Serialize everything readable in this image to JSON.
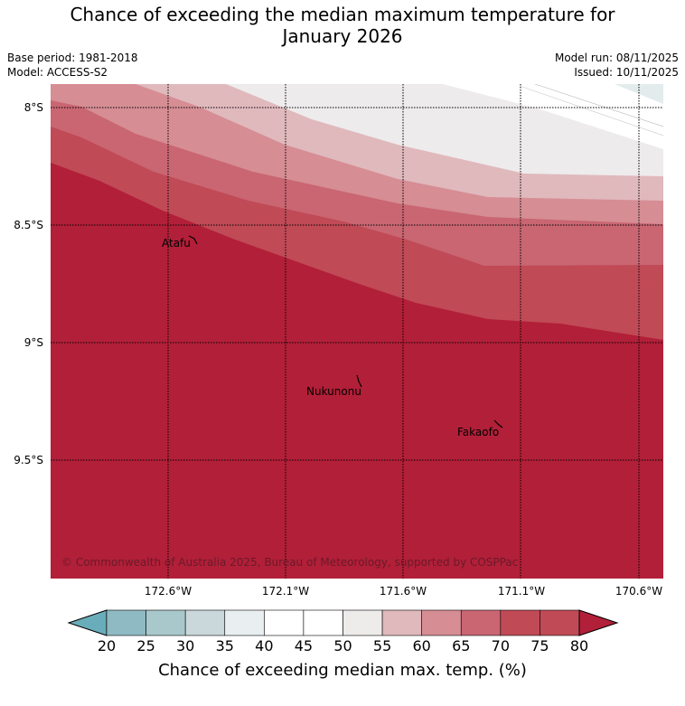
{
  "title": {
    "line1": "Chance of exceeding the median maximum temperature for",
    "line2": "January 2026"
  },
  "meta": {
    "base_period": "Base period: 1981-2018",
    "model": "Model: ACCESS-S2",
    "model_run": "Model run: 08/11/2025",
    "issued": "Issued: 10/11/2025"
  },
  "map": {
    "lat_labels": [
      "8°S",
      "8.5°S",
      "9°S",
      "9.5°S"
    ],
    "lon_labels": [
      "172.6°W",
      "172.1°W",
      "171.6°W",
      "171.1°W",
      "170.6°W"
    ],
    "places": [
      {
        "name": "Atafu"
      },
      {
        "name": "Nukunonu"
      },
      {
        "name": "Fakaofo"
      }
    ],
    "copyright": "© Commonwealth of Australia 2025, Bureau of Meteorology, supported by COSPPac"
  },
  "colorbar": {
    "ticks": [
      "20",
      "25",
      "30",
      "35",
      "40",
      "45",
      "50",
      "55",
      "60",
      "65",
      "70",
      "75",
      "80"
    ],
    "colors": [
      "#6aadba",
      "#8fbac4",
      "#a9c8cc",
      "#cad8dc",
      "#e9eef0",
      "#ffffff",
      "#ffffff",
      "#eeebeb",
      "#e0b9bd",
      "#d68d94",
      "#c96672",
      "#c04a56",
      "#b21f38"
    ],
    "label": "Chance of exceeding median max. temp. (%)"
  }
}
